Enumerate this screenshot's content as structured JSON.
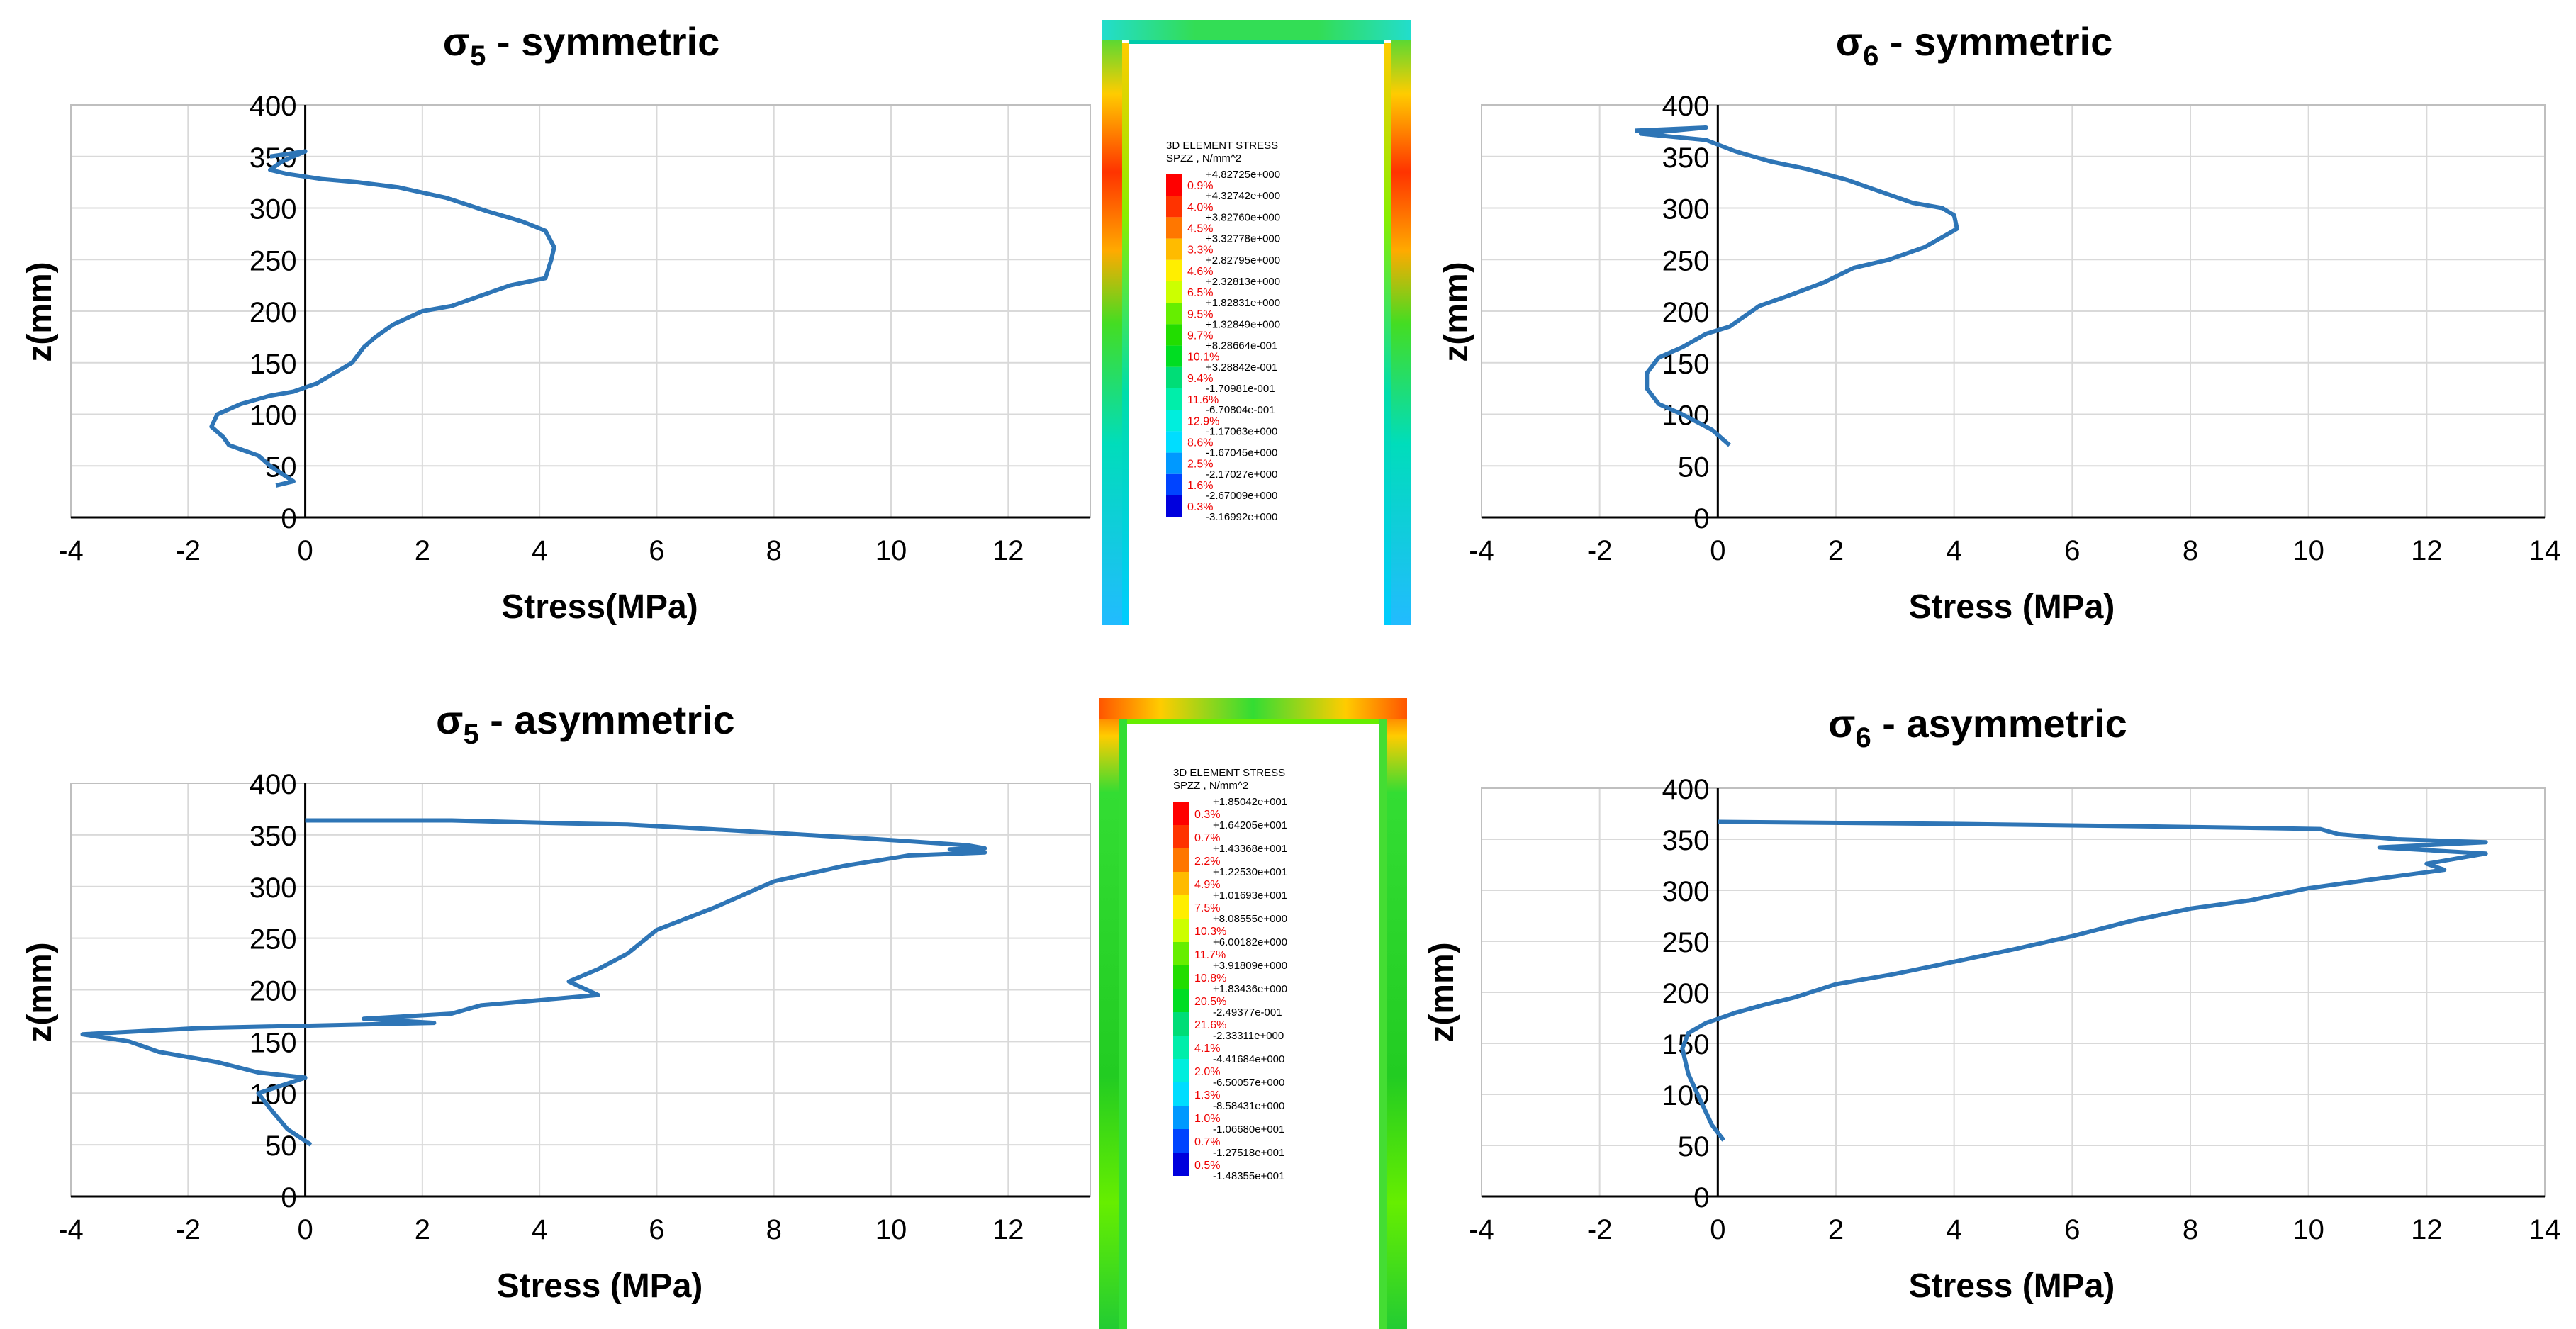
{
  "chart_data": [
    {
      "id": "s5sym",
      "type": "line",
      "title": "σ5 - symmetric",
      "title_symbol": "σ",
      "title_subscript": "5",
      "title_suffix": " - symmetric",
      "xlabel": "Stress(MPa)",
      "ylabel": "z(mm)",
      "xlim": [
        -4,
        13.4
      ],
      "ylim": [
        0,
        400
      ],
      "xticks": [
        "-4",
        "-2",
        "0",
        "2",
        "4",
        "6",
        "8",
        "10",
        "12"
      ],
      "yticks": [
        "0",
        "50",
        "100",
        "150",
        "200",
        "250",
        "300",
        "350",
        "400"
      ],
      "grid": true,
      "series": [
        {
          "name": "σ5 symmetric",
          "color": "#2e75b6",
          "x": [
            -0.6,
            0.0,
            -0.4,
            -0.6,
            -0.3,
            0.3,
            0.9,
            1.6,
            2.4,
            3.1,
            3.7,
            4.1,
            4.25,
            4.2,
            4.1,
            3.5,
            2.5,
            2.0,
            1.5,
            1.2,
            1.0,
            0.8,
            0.5,
            0.2,
            -0.2,
            -0.6,
            -1.1,
            -1.5,
            -1.6,
            -1.4,
            -1.3,
            -0.8,
            -0.6,
            -0.2,
            -0.5
          ],
          "y": [
            350,
            355,
            345,
            337,
            333,
            328,
            325,
            320,
            310,
            297,
            287,
            278,
            262,
            250,
            232,
            225,
            205,
            200,
            187,
            175,
            165,
            150,
            140,
            130,
            122,
            118,
            110,
            100,
            88,
            78,
            70,
            60,
            50,
            35,
            31
          ]
        }
      ]
    },
    {
      "id": "s6sym",
      "type": "line",
      "title": "σ6 - symmetric",
      "title_symbol": "σ",
      "title_subscript": "6",
      "title_suffix": " - symmetric",
      "xlabel": "Stress (MPa)",
      "ylabel": "z(mm)",
      "xlim": [
        -4,
        14
      ],
      "ylim": [
        0,
        400
      ],
      "xticks": [
        "-4",
        "-2",
        "0",
        "2",
        "4",
        "6",
        "8",
        "10",
        "12",
        "14"
      ],
      "yticks": [
        "0",
        "50",
        "100",
        "150",
        "200",
        "250",
        "300",
        "350",
        "400"
      ],
      "grid": true,
      "series": [
        {
          "name": "σ6 symmetric",
          "color": "#2e75b6",
          "x": [
            -1.4,
            -0.2,
            -1.3,
            -0.2,
            0.3,
            0.9,
            1.5,
            2.2,
            2.8,
            3.3,
            3.8,
            4.0,
            4.05,
            3.9,
            3.5,
            2.9,
            2.3,
            1.8,
            1.2,
            0.7,
            0.2,
            -0.2,
            -0.6,
            -1.0,
            -1.2,
            -1.2,
            -1.0,
            -0.6,
            -0.1,
            0.2
          ],
          "y": [
            375,
            378,
            372,
            366,
            355,
            345,
            338,
            327,
            315,
            305,
            300,
            293,
            280,
            275,
            262,
            250,
            242,
            228,
            215,
            205,
            185,
            178,
            165,
            155,
            140,
            125,
            110,
            100,
            85,
            70
          ]
        }
      ]
    },
    {
      "id": "s5asym",
      "type": "line",
      "title": "σ5 - asymmetric",
      "title_symbol": "σ",
      "title_subscript": "5",
      "title_suffix": " - asymmetric",
      "xlabel": "Stress (MPa)",
      "ylabel": "z(mm)",
      "xlim": [
        -4,
        13.4
      ],
      "ylim": [
        0,
        400
      ],
      "xticks": [
        "-4",
        "-2",
        "0",
        "2",
        "4",
        "6",
        "8",
        "10",
        "12"
      ],
      "yticks": [
        "0",
        "50",
        "100",
        "150",
        "200",
        "250",
        "300",
        "350",
        "400"
      ],
      "grid": true,
      "series": [
        {
          "name": "σ5 asymmetric",
          "color": "#2e75b6",
          "x": [
            0.0,
            2.5,
            4.5,
            5.5,
            6.5,
            8.0,
            10.0,
            11.3,
            11.6,
            11.0,
            11.6,
            10.3,
            9.2,
            8.0,
            7.0,
            6.0,
            5.5,
            5.0,
            4.5,
            5.0,
            4.0,
            3.0,
            2.5,
            1.0,
            2.2,
            -1.8,
            -3.8,
            -3.0,
            -2.5,
            -1.5,
            -0.8,
            0.0,
            -0.8,
            -0.6,
            -0.3,
            0.1
          ],
          "y": [
            364,
            364,
            361,
            360,
            357,
            352,
            345,
            340,
            337,
            336,
            333,
            330,
            320,
            305,
            280,
            258,
            235,
            220,
            208,
            195,
            190,
            185,
            177,
            172,
            168,
            163,
            157,
            150,
            140,
            130,
            120,
            115,
            100,
            85,
            65,
            50
          ]
        }
      ]
    },
    {
      "id": "s6asym",
      "type": "line",
      "title": "σ6 - asymmetric",
      "title_symbol": "σ",
      "title_subscript": "6",
      "title_suffix": " - asymmetric",
      "xlabel": "Stress (MPa)",
      "ylabel": "z(mm)",
      "xlim": [
        -4,
        14
      ],
      "ylim": [
        0,
        400
      ],
      "xticks": [
        "-4",
        "-2",
        "0",
        "2",
        "4",
        "6",
        "8",
        "10",
        "12",
        "14"
      ],
      "yticks": [
        "0",
        "50",
        "100",
        "150",
        "200",
        "250",
        "300",
        "350",
        "400"
      ],
      "grid": true,
      "series": [
        {
          "name": "σ6 asymmetric",
          "color": "#2e75b6",
          "x": [
            0.0,
            4.0,
            8.0,
            10.2,
            10.5,
            11.5,
            13.0,
            11.2,
            13.0,
            12.0,
            12.3,
            11.0,
            10.0,
            9.0,
            8.0,
            7.0,
            6.0,
            5.0,
            4.0,
            3.0,
            2.0,
            1.3,
            0.8,
            0.3,
            -0.2,
            -0.5,
            -0.6,
            -0.5,
            -0.3,
            -0.1,
            0.1
          ],
          "y": [
            367,
            365,
            362,
            360,
            355,
            350,
            347,
            342,
            336,
            326,
            320,
            310,
            302,
            290,
            282,
            270,
            255,
            242,
            230,
            218,
            208,
            195,
            188,
            180,
            170,
            160,
            145,
            120,
            95,
            70,
            55
          ]
        }
      ]
    }
  ],
  "contour_panels": [
    {
      "id": "legend-symmetric",
      "header_line1": "3D ELEMENT STRESS",
      "header_line2": "SPZZ , N/mm^2",
      "values": [
        "+4.82725e+000",
        "+4.32742e+000",
        "+3.82760e+000",
        "+3.32778e+000",
        "+2.82795e+000",
        "+2.32813e+000",
        "+1.82831e+000",
        "+1.32849e+000",
        "+8.28664e-001",
        "+3.28842e-001",
        "-1.70981e-001",
        "-6.70804e-001",
        "-1.17063e+000",
        "-1.67045e+000",
        "-2.17027e+000",
        "-2.67009e+000",
        "-3.16992e+000"
      ],
      "percents": [
        "0.9%",
        "4.0%",
        "4.5%",
        "3.3%",
        "4.6%",
        "6.5%",
        "9.5%",
        "9.7%",
        "10.1%",
        "9.4%",
        "11.6%",
        "12.9%",
        "8.6%",
        "2.5%",
        "1.6%",
        "0.3%"
      ],
      "colors": [
        "#ff0000",
        "#ff3300",
        "#ff7700",
        "#ffbb00",
        "#ffee00",
        "#ccff00",
        "#66ee00",
        "#22dd00",
        "#00dd22",
        "#00dd77",
        "#00eeaa",
        "#00eedd",
        "#00ddff",
        "#0099ff",
        "#0044ff",
        "#0000dd"
      ]
    },
    {
      "id": "legend-asymmetric",
      "header_line1": "3D ELEMENT STRESS",
      "header_line2": "SPZZ , N/mm^2",
      "values": [
        "+1.85042e+001",
        "+1.64205e+001",
        "+1.43368e+001",
        "+1.22530e+001",
        "+1.01693e+001",
        "+8.08555e+000",
        "+6.00182e+000",
        "+3.91809e+000",
        "+1.83436e+000",
        "-2.49377e-001",
        "-2.33311e+000",
        "-4.41684e+000",
        "-6.50057e+000",
        "-8.58431e+000",
        "-1.06680e+001",
        "-1.27518e+001",
        "-1.48355e+001"
      ],
      "percents": [
        "0.3%",
        "0.7%",
        "2.2%",
        "4.9%",
        "7.5%",
        "10.3%",
        "11.7%",
        "10.8%",
        "20.5%",
        "21.6%",
        "4.1%",
        "2.0%",
        "1.3%",
        "1.0%",
        "0.7%",
        "0.5%"
      ],
      "colors": [
        "#ff0000",
        "#ff3300",
        "#ff7700",
        "#ffbb00",
        "#ffee00",
        "#ccff00",
        "#66ee00",
        "#22dd00",
        "#00dd22",
        "#00dd77",
        "#00eeaa",
        "#00eedd",
        "#00ddff",
        "#0099ff",
        "#0044ff",
        "#0000dd"
      ]
    }
  ]
}
